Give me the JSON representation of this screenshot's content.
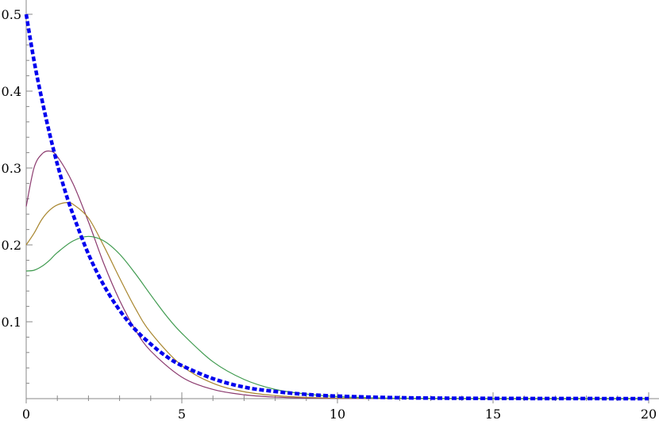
{
  "chart_data": {
    "type": "line",
    "title": "",
    "xlabel": "",
    "ylabel": "",
    "xlim": [
      0,
      20
    ],
    "ylim": [
      0,
      0.5
    ],
    "x_ticks": [
      0,
      5,
      10,
      15,
      20
    ],
    "x_tick_labels": [
      "0",
      "5",
      "10",
      "15",
      "20"
    ],
    "y_ticks": [
      0.1,
      0.2,
      0.3,
      0.4,
      0.5
    ],
    "y_tick_labels": [
      "0.1",
      "0.2",
      "0.3",
      "0.4",
      "0.5"
    ],
    "grid": false,
    "legend": "none",
    "series": [
      {
        "color": "#8b3a6e",
        "style": "solid",
        "x": [
          0,
          0.25,
          0.5,
          0.75,
          1,
          1.5,
          2,
          2.5,
          3,
          3.5,
          4,
          5,
          6,
          7,
          8,
          9,
          10,
          12,
          15,
          20
        ],
        "y": [
          0.25,
          0.3,
          0.318,
          0.322,
          0.315,
          0.28,
          0.23,
          0.175,
          0.128,
          0.09,
          0.062,
          0.028,
          0.012,
          0.005,
          0.002,
          0.0008,
          0.0003,
          5e-05,
          0,
          0
        ]
      },
      {
        "color": "#a8862e",
        "style": "solid",
        "x": [
          0,
          0.25,
          0.5,
          0.75,
          1,
          1.3,
          1.5,
          2,
          2.5,
          3,
          3.5,
          4,
          5,
          6,
          7,
          8,
          9,
          10,
          12,
          15,
          20
        ],
        "y": [
          0.2,
          0.215,
          0.233,
          0.245,
          0.252,
          0.255,
          0.253,
          0.235,
          0.198,
          0.157,
          0.118,
          0.086,
          0.043,
          0.02,
          0.009,
          0.004,
          0.0016,
          0.0007,
          0.0001,
          0,
          0
        ]
      },
      {
        "color": "#3e9a4e",
        "style": "solid",
        "x": [
          0,
          0.25,
          0.5,
          0.75,
          1,
          1.5,
          2,
          2.5,
          3,
          3.5,
          4,
          4.5,
          5,
          6,
          7,
          8,
          9,
          10,
          11,
          12,
          15,
          20
        ],
        "y": [
          0.166,
          0.167,
          0.172,
          0.18,
          0.19,
          0.205,
          0.211,
          0.205,
          0.188,
          0.163,
          0.135,
          0.108,
          0.085,
          0.048,
          0.025,
          0.012,
          0.006,
          0.0027,
          0.0012,
          0.0005,
          3e-05,
          0
        ]
      },
      {
        "color": "#0000ee",
        "style": "dashed",
        "x": [
          0,
          0.25,
          0.5,
          0.75,
          1,
          1.25,
          1.5,
          2,
          2.5,
          3,
          3.5,
          4,
          4.5,
          5,
          6,
          7,
          8,
          9,
          10,
          12,
          15,
          20
        ],
        "y": [
          0.5,
          0.44,
          0.39,
          0.345,
          0.305,
          0.27,
          0.24,
          0.188,
          0.147,
          0.115,
          0.09,
          0.071,
          0.055,
          0.043,
          0.026,
          0.015,
          0.0093,
          0.0055,
          0.0033,
          0.0012,
          0.0003,
          0
        ]
      }
    ]
  }
}
